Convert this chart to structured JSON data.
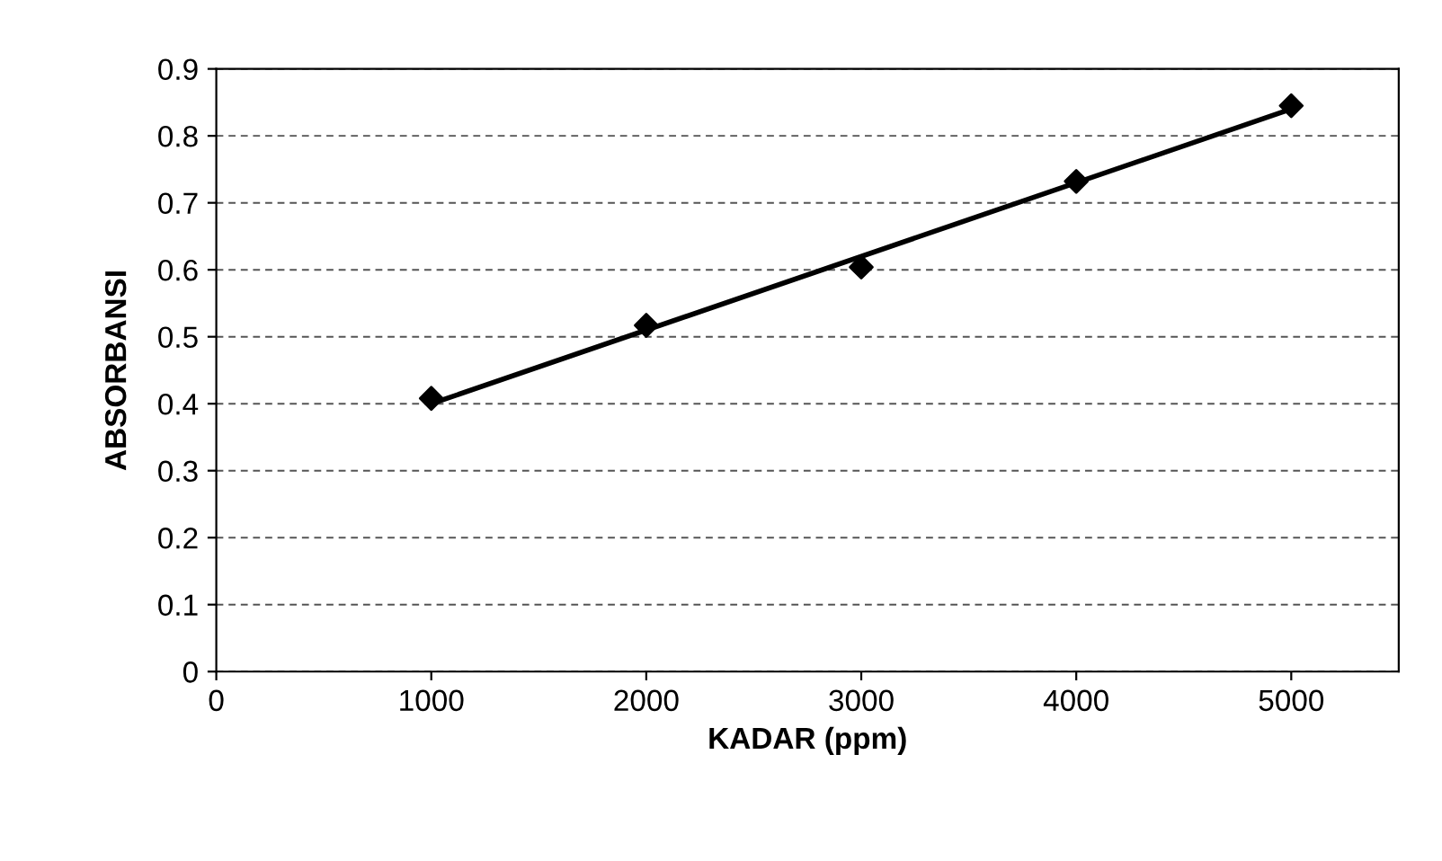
{
  "chart_data": {
    "type": "scatter",
    "xlabel": "KADAR (ppm)",
    "ylabel": "ABSORBANSI",
    "xlim": [
      0,
      5500
    ],
    "xticks": [
      0,
      1000,
      2000,
      3000,
      4000,
      5000
    ],
    "ylim": [
      0,
      0.9
    ],
    "yticks": [
      0,
      0.1,
      0.2,
      0.3,
      0.4,
      0.5,
      0.6,
      0.7,
      0.8,
      0.9
    ],
    "grid": "y",
    "legend": false,
    "series": [
      {
        "color": "#000000",
        "marker": "diamond",
        "x": [
          1000,
          2000,
          3000,
          4000,
          5000
        ],
        "values": [
          0.408,
          0.517,
          0.604,
          0.732,
          0.845
        ]
      },
      {
        "type": "line",
        "color": "#000000",
        "marker": "none",
        "line_style": "solid",
        "x": [
          1000,
          5000
        ],
        "values": [
          0.4,
          0.84
        ]
      }
    ]
  }
}
